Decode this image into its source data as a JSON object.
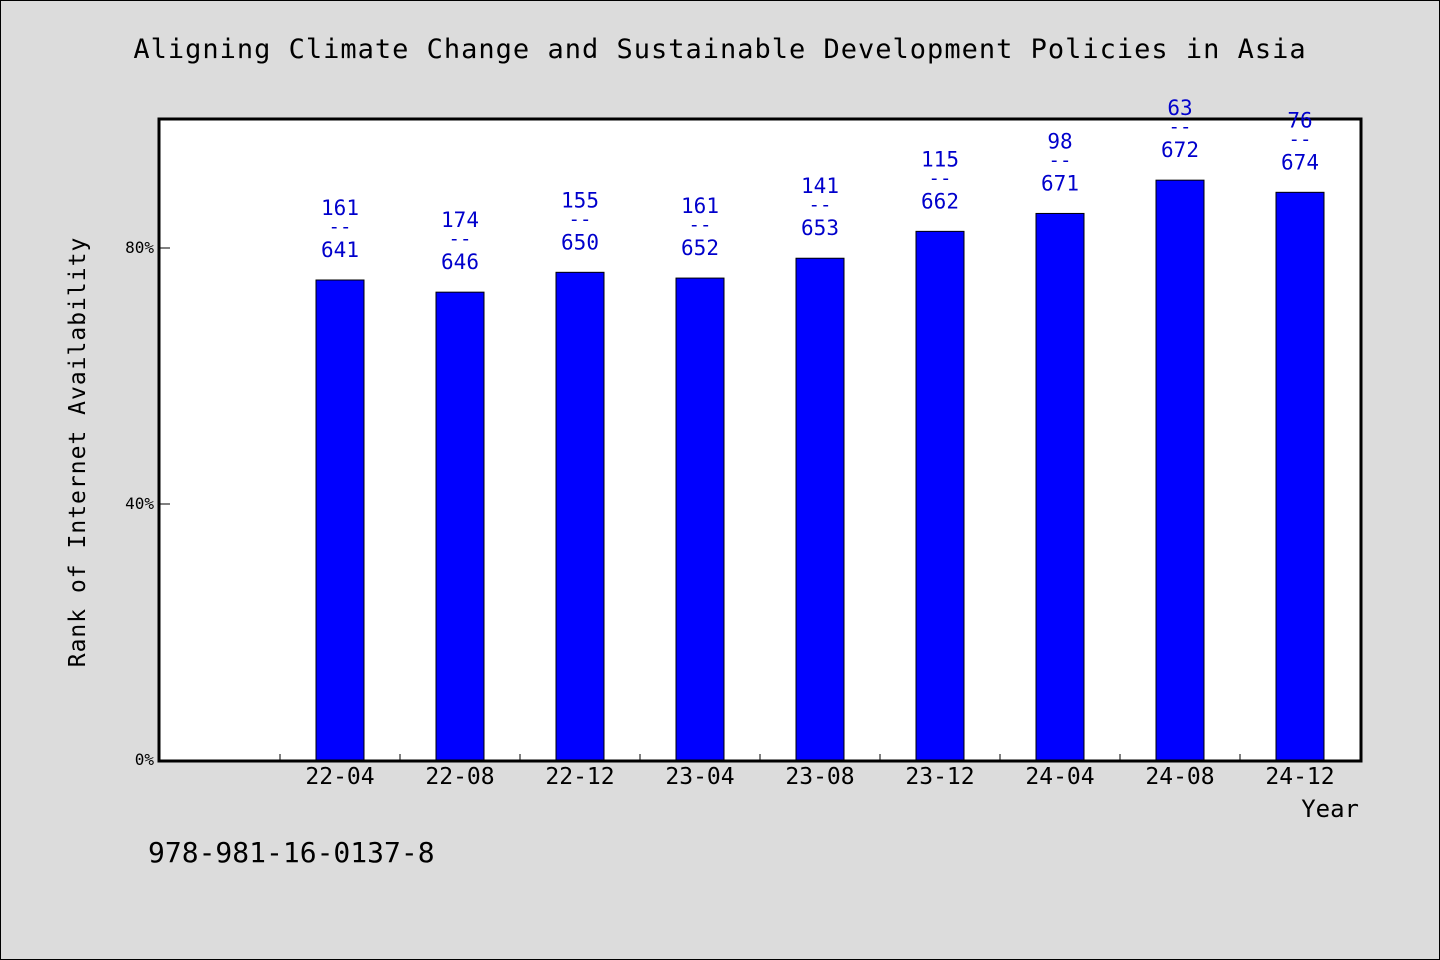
{
  "chart_data": {
    "type": "bar",
    "title": "Aligning Climate Change and Sustainable Development Policies in Asia",
    "xlabel": "Year",
    "ylabel": "Rank of Internet Availability",
    "categories": [
      "22-04",
      "22-08",
      "22-12",
      "23-04",
      "23-08",
      "23-12",
      "24-04",
      "24-08",
      "24-12"
    ],
    "values": [
      75.0,
      73.1,
      76.2,
      75.3,
      78.4,
      82.6,
      85.4,
      90.6,
      88.7
    ],
    "bar_labels": [
      {
        "rank": "161",
        "sep": "--",
        "total": "641"
      },
      {
        "rank": "174",
        "sep": "--",
        "total": "646"
      },
      {
        "rank": "155",
        "sep": "--",
        "total": "650"
      },
      {
        "rank": "161",
        "sep": "--",
        "total": "652"
      },
      {
        "rank": "141",
        "sep": "--",
        "total": "653"
      },
      {
        "rank": "115",
        "sep": "--",
        "total": "662"
      },
      {
        "rank": "98",
        "sep": "--",
        "total": "671"
      },
      {
        "rank": "63",
        "sep": "--",
        "total": "672"
      },
      {
        "rank": "76",
        "sep": "--",
        "total": "674"
      }
    ],
    "yticks": [
      0,
      40,
      80
    ],
    "ytick_labels": [
      "0%",
      "40%",
      "80%"
    ],
    "ylim": [
      0,
      100
    ],
    "grid": false,
    "legend": "none"
  },
  "footer_text": "978-981-16-0137-8",
  "colors": {
    "background": "#dcdcdc",
    "plot_area": "#ffffff",
    "bar": "#0000ff",
    "bar_label": "#0000cc",
    "text": "#000000"
  }
}
